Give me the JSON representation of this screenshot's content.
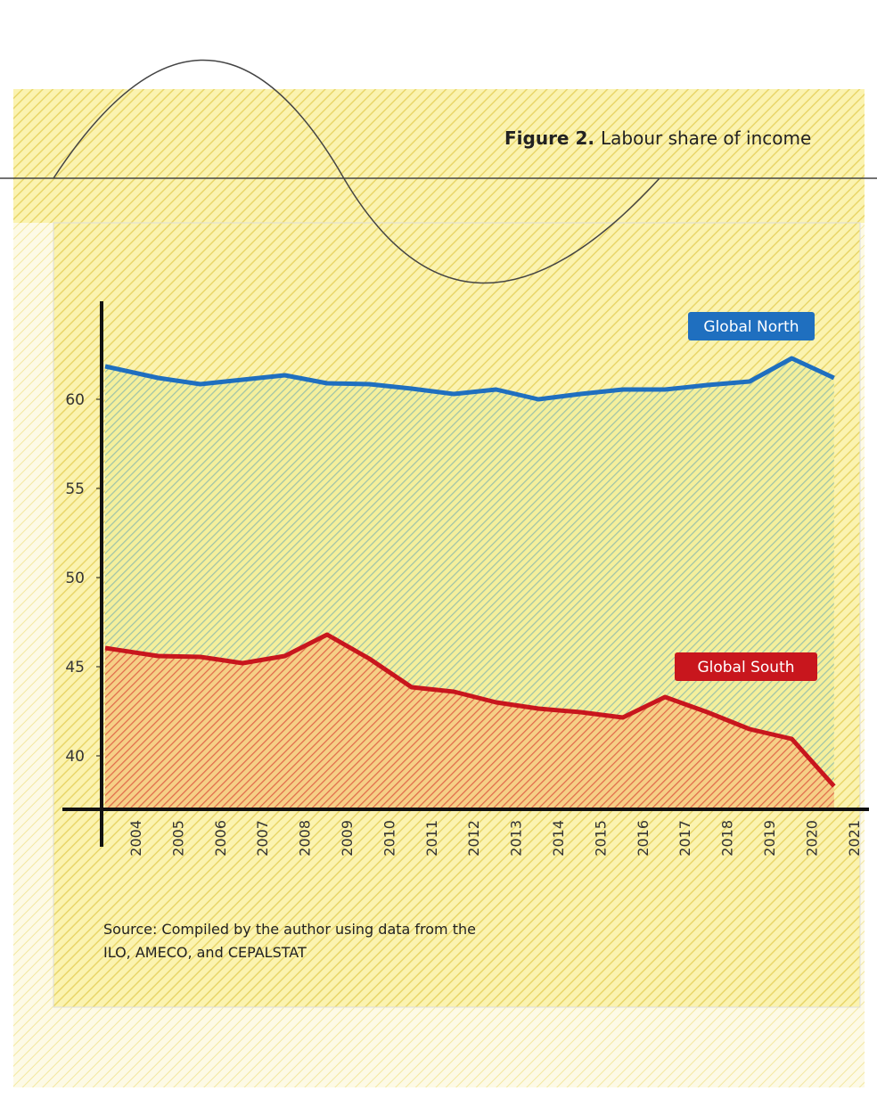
{
  "chart_data": {
    "type": "line",
    "title_prefix": "Figure 2.",
    "title": "Labour share of income",
    "source": "Source: Compiled by the author using data from the ILO, AMECO, and CEPALSTAT",
    "categories": [
      "2004",
      "2005",
      "2006",
      "2007",
      "2008",
      "2009",
      "2010",
      "2011",
      "2012",
      "2013",
      "2014",
      "2015",
      "2016",
      "2017",
      "2018",
      "2019",
      "2020",
      "2021"
    ],
    "series": [
      {
        "name": "Global North",
        "color": "#1f6fbf",
        "values": [
          61.85,
          61.2,
          60.85,
          61.1,
          61.35,
          60.9,
          60.85,
          60.6,
          60.3,
          60.55,
          60.0,
          60.3,
          60.55,
          60.55,
          60.8,
          61.0,
          62.3,
          61.2
        ]
      },
      {
        "name": "Global South",
        "color": "#c8161d",
        "values": [
          46.05,
          45.6,
          45.55,
          45.2,
          45.6,
          46.8,
          45.45,
          43.85,
          43.6,
          43.0,
          42.65,
          42.45,
          42.15,
          43.3,
          42.45,
          41.5,
          40.95,
          38.3
        ]
      }
    ],
    "ylim": [
      37,
      65.5
    ],
    "yticks": [
      40,
      45,
      50,
      55,
      60
    ]
  }
}
